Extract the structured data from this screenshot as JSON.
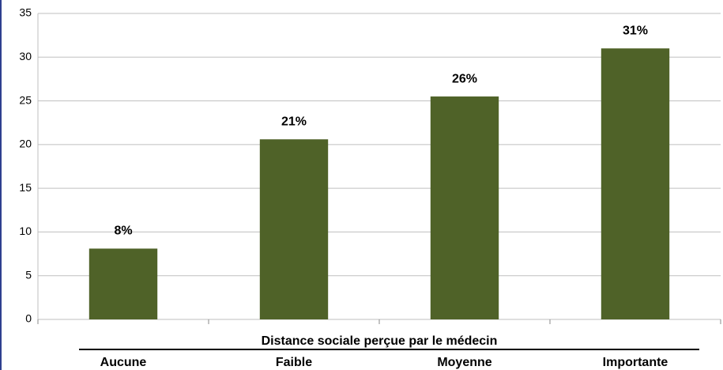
{
  "chart_data": {
    "type": "bar",
    "x_label": "Distance sociale  perçue par le médecin",
    "categories": [
      "Aucune",
      "Faible",
      "Moyenne",
      "Importante"
    ],
    "values": [
      8.1,
      20.6,
      25.5,
      31.0
    ],
    "value_labels": [
      "8%",
      "21%",
      "26%",
      "31%"
    ],
    "color": "#4f6228",
    "ylim": [
      0,
      35
    ],
    "yticks": [
      0,
      5,
      10,
      15,
      20,
      25,
      30,
      35
    ],
    "grid": true
  }
}
